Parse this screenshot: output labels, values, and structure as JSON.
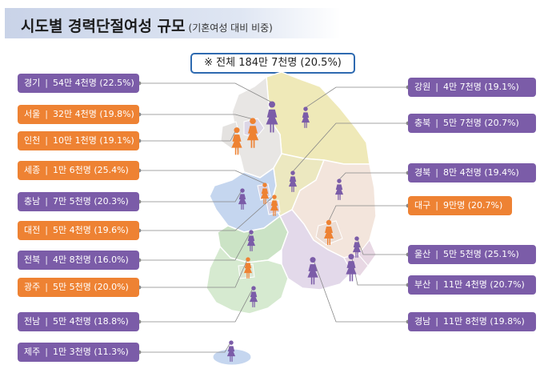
{
  "title": "시도별 경력단절여성 규모",
  "subtitle": "(기혼여성 대비 비중)",
  "total": "※ 전체 184만 7천명 (20.5%)",
  "colors": {
    "purple": "#7b5ca8",
    "orange": "#ee8233",
    "header": "#c9d3e8",
    "total_border": "#2e6ab0"
  },
  "regions": [
    {
      "name": "경기",
      "value": "54만 4천명 (22.5%)",
      "color": "purple"
    },
    {
      "name": "서울",
      "value": "32만 4천명 (19.8%)",
      "color": "orange"
    },
    {
      "name": "인천",
      "value": "10만 1천명 (19.1%)",
      "color": "orange"
    },
    {
      "name": "세종",
      "value": "1만 6천명 (25.4%)",
      "color": "orange"
    },
    {
      "name": "충남",
      "value": "7만 5천명 (20.3%)",
      "color": "purple"
    },
    {
      "name": "대전",
      "value": "5만 4천명 (19.6%)",
      "color": "orange"
    },
    {
      "name": "전북",
      "value": "4만 8천명 (16.0%)",
      "color": "purple"
    },
    {
      "name": "광주",
      "value": "5만 5천명 (20.0%)",
      "color": "orange"
    },
    {
      "name": "전남",
      "value": "5만 4천명 (18.8%)",
      "color": "purple"
    },
    {
      "name": "제주",
      "value": "1만 3천명 (11.3%)",
      "color": "purple"
    },
    {
      "name": "강원",
      "value": "4만 7천명 (19.1%)",
      "color": "purple"
    },
    {
      "name": "충북",
      "value": "5만 7천명 (20.7%)",
      "color": "purple"
    },
    {
      "name": "경북",
      "value": "8만 4천명 (19.4%)",
      "color": "purple"
    },
    {
      "name": "대구",
      "value": "9만명 (20.7%)",
      "color": "orange"
    },
    {
      "name": "울산",
      "value": "5만 5천명 (25.1%)",
      "color": "purple"
    },
    {
      "name": "부산",
      "value": "11만 4천명 (20.7%)",
      "color": "purple"
    },
    {
      "name": "경남",
      "value": "11만 8천명 (19.8%)",
      "color": "purple"
    }
  ]
}
